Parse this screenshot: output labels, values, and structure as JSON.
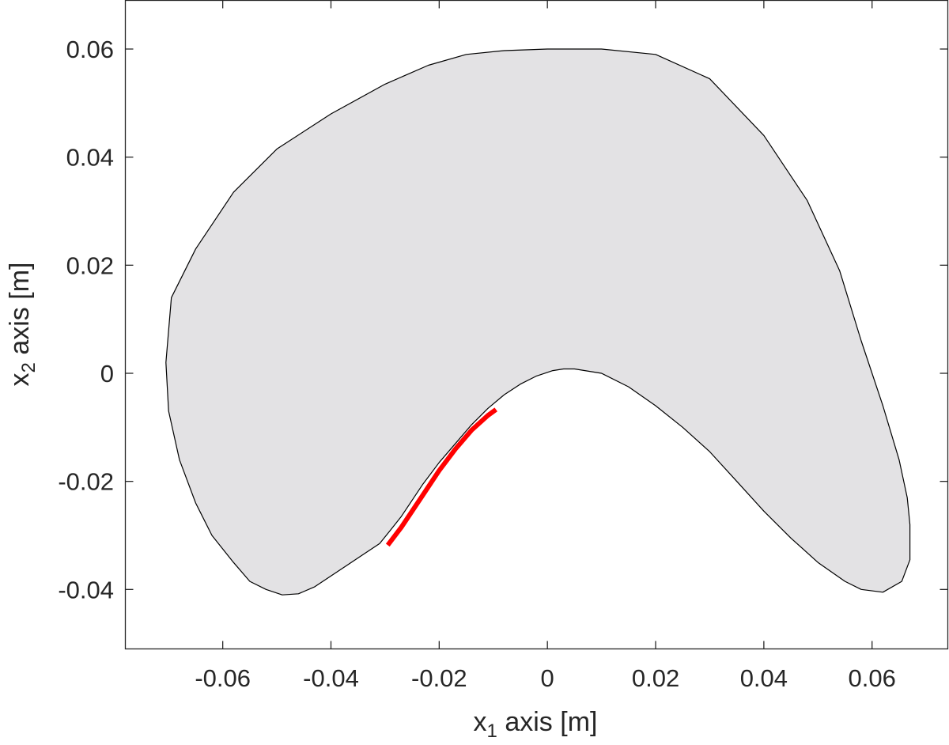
{
  "chart_data": {
    "type": "area",
    "title": "",
    "xlabel": {
      "base": "x",
      "sub": "1",
      "rest": " axis [m]"
    },
    "ylabel": {
      "base": "x",
      "sub": "2",
      "rest": " axis [m]"
    },
    "xlim": [
      -0.078,
      0.074
    ],
    "ylim": [
      -0.051,
      0.069
    ],
    "xticks": [
      -0.06,
      -0.04,
      -0.02,
      0,
      0.02,
      0.04,
      0.06
    ],
    "xtick_labels": [
      "-0.06",
      "-0.04",
      "-0.02",
      "0",
      "0.02",
      "0.04",
      "0.06"
    ],
    "yticks": [
      -0.04,
      -0.02,
      0,
      0.02,
      0.04,
      0.06
    ],
    "ytick_labels": [
      "-0.04",
      "-0.02",
      "0",
      "0.02",
      "0.04",
      "0.06"
    ],
    "grid": false,
    "series": [
      {
        "kind": "filled-region",
        "fill": "#e3e2e4",
        "stroke": "#000000",
        "x": [
          0.005,
          0.01,
          0.015,
          0.02,
          0.025,
          0.03,
          0.035,
          0.04,
          0.045,
          0.05,
          0.055,
          0.058,
          0.062,
          0.0655,
          0.067,
          0.067,
          0.0665,
          0.065,
          0.062,
          0.058,
          0.054,
          0.048,
          0.04,
          0.03,
          0.02,
          0.01,
          0.0,
          -0.008,
          -0.015,
          -0.022,
          -0.03,
          -0.04,
          -0.05,
          -0.058,
          -0.065,
          -0.0695,
          -0.0705,
          -0.07,
          -0.068,
          -0.065,
          -0.062,
          -0.058,
          -0.055,
          -0.052,
          -0.049,
          -0.046,
          -0.043,
          -0.04,
          -0.037,
          -0.034,
          -0.031,
          -0.029,
          -0.027,
          -0.025,
          -0.023,
          -0.02,
          -0.017,
          -0.014,
          -0.011,
          -0.008,
          -0.005,
          -0.002,
          0.001,
          0.003,
          0.005
        ],
        "y": [
          0.0008,
          0.0,
          -0.0025,
          -0.006,
          -0.01,
          -0.0145,
          -0.02,
          -0.0255,
          -0.0305,
          -0.035,
          -0.0385,
          -0.04,
          -0.0405,
          -0.0385,
          -0.0345,
          -0.028,
          -0.023,
          -0.016,
          -0.006,
          0.006,
          0.019,
          0.032,
          0.044,
          0.0545,
          0.059,
          0.06,
          0.06,
          0.0597,
          0.059,
          0.057,
          0.0535,
          0.048,
          0.0415,
          0.0335,
          0.023,
          0.014,
          0.002,
          -0.007,
          -0.016,
          -0.024,
          -0.03,
          -0.035,
          -0.0385,
          -0.04,
          -0.041,
          -0.0408,
          -0.0395,
          -0.0375,
          -0.0355,
          -0.0335,
          -0.0315,
          -0.029,
          -0.0265,
          -0.0235,
          -0.0205,
          -0.0165,
          -0.013,
          -0.0095,
          -0.0065,
          -0.004,
          -0.002,
          -0.0005,
          0.0005,
          0.0008,
          0.0008
        ]
      },
      {
        "kind": "line",
        "stroke": "#ff0000",
        "x": [
          -0.0295,
          -0.027,
          -0.025,
          -0.023,
          -0.02,
          -0.017,
          -0.014,
          -0.011,
          -0.0095
        ],
        "y": [
          -0.0318,
          -0.0285,
          -0.0255,
          -0.0225,
          -0.018,
          -0.014,
          -0.0105,
          -0.0078,
          -0.0067
        ]
      }
    ]
  }
}
